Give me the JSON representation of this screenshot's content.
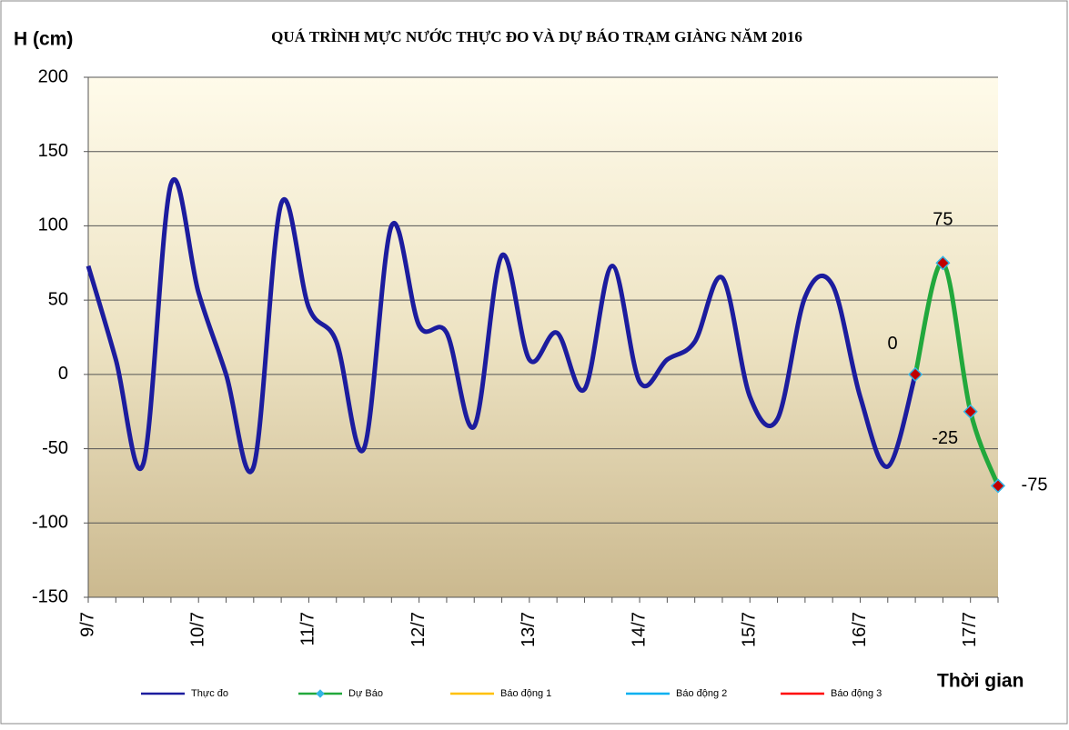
{
  "chart_data": {
    "type": "line",
    "title": "QUÁ TRÌNH MỰC NƯỚC THỰC ĐO VÀ DỰ BÁO TRẠM GIÀNG NĂM 2016",
    "y_axis_label": "H (cm)",
    "x_axis_label": "Thời gian",
    "categories": [
      "9/7",
      null,
      null,
      null,
      "10/7",
      null,
      null,
      null,
      "11/7",
      null,
      null,
      null,
      "12/7",
      null,
      null,
      null,
      "13/7",
      null,
      null,
      null,
      "14/7",
      null,
      null,
      null,
      "15/7",
      null,
      null,
      null,
      "16/7",
      null,
      null,
      null,
      "17/7",
      null
    ],
    "series": [
      {
        "name": "Thực đo",
        "color": "#1c1c9e",
        "values": [
          73,
          10,
          -60,
          128,
          55,
          0,
          -62,
          115,
          45,
          22,
          -50,
          100,
          33,
          28,
          -35,
          80,
          10,
          28,
          -10,
          73,
          -5,
          10,
          22,
          65,
          -15,
          -30,
          52,
          60,
          -15,
          -62,
          0,
          null,
          null,
          null
        ]
      },
      {
        "name": "Dự Báo",
        "color": "#22a83c",
        "marker": "diamond",
        "marker_color": "#c00000",
        "marker_edge": "#33b5e5",
        "data_labels": true,
        "values": [
          null,
          null,
          null,
          null,
          null,
          null,
          null,
          null,
          null,
          null,
          null,
          null,
          null,
          null,
          null,
          null,
          null,
          null,
          null,
          null,
          null,
          null,
          null,
          null,
          null,
          null,
          null,
          null,
          null,
          null,
          0,
          75,
          -25,
          -75
        ]
      },
      {
        "name": "Báo động 1",
        "color": "#ffc000",
        "values": [
          null,
          null,
          null,
          null,
          null,
          null,
          null,
          null,
          null,
          null,
          null,
          null,
          null,
          null,
          null,
          null,
          null,
          null,
          null,
          null,
          null,
          null,
          null,
          null,
          null,
          null,
          null,
          null,
          null,
          null,
          null,
          null,
          null,
          null
        ]
      },
      {
        "name": "Báo động 2",
        "color": "#00b0f0",
        "values": [
          null,
          null,
          null,
          null,
          null,
          null,
          null,
          null,
          null,
          null,
          null,
          null,
          null,
          null,
          null,
          null,
          null,
          null,
          null,
          null,
          null,
          null,
          null,
          null,
          null,
          null,
          null,
          null,
          null,
          null,
          null,
          null,
          null,
          null
        ]
      },
      {
        "name": "Báo động 3",
        "color": "#ff0000",
        "values": [
          null,
          null,
          null,
          null,
          null,
          null,
          null,
          null,
          null,
          null,
          null,
          null,
          null,
          null,
          null,
          null,
          null,
          null,
          null,
          null,
          null,
          null,
          null,
          null,
          null,
          null,
          null,
          null,
          null,
          null,
          null,
          null,
          null,
          null
        ]
      }
    ],
    "ylim": [
      -150,
      200
    ],
    "yticks": [
      -150,
      -100,
      -50,
      0,
      50,
      100,
      150,
      200
    ],
    "grid": true,
    "legend": "bottom",
    "smooth": true
  }
}
